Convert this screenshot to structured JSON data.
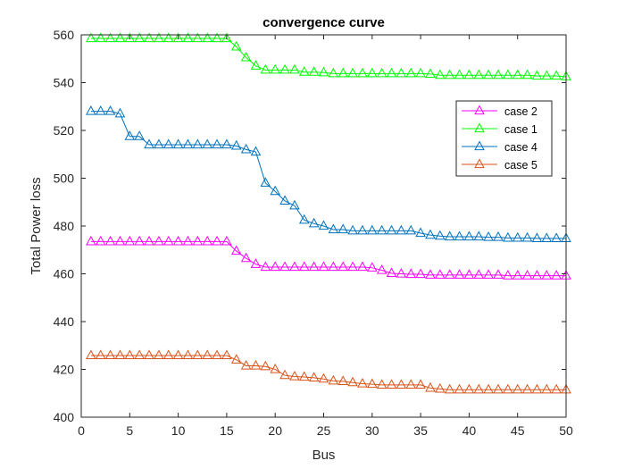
{
  "chart_data": {
    "type": "line",
    "title": "convergence curve",
    "xlabel": "Bus",
    "ylabel": "Total Power loss",
    "xlim": [
      0,
      50
    ],
    "ylim": [
      400,
      560
    ],
    "xticks": [
      0,
      5,
      10,
      15,
      20,
      25,
      30,
      35,
      40,
      45,
      50
    ],
    "yticks": [
      400,
      420,
      440,
      460,
      480,
      500,
      520,
      540,
      560
    ],
    "grid": false,
    "marker": "triangle-up-open",
    "legend_position": "top-right",
    "x": [
      1,
      2,
      3,
      4,
      5,
      6,
      7,
      8,
      9,
      10,
      11,
      12,
      13,
      14,
      15,
      16,
      17,
      18,
      19,
      20,
      21,
      22,
      23,
      24,
      25,
      26,
      27,
      28,
      29,
      30,
      31,
      32,
      33,
      34,
      35,
      36,
      37,
      38,
      39,
      40,
      41,
      42,
      43,
      44,
      45,
      46,
      47,
      48,
      49,
      50
    ],
    "series": [
      {
        "name": "case 2",
        "color": "#ff00ff",
        "values": [
          473.5,
          473.5,
          473.5,
          473.5,
          473.5,
          473.5,
          473.5,
          473.5,
          473.5,
          473.5,
          473.5,
          473.5,
          473.5,
          473.5,
          473.5,
          469.5,
          466.5,
          464.0,
          462.8,
          462.8,
          462.8,
          462.8,
          462.8,
          462.8,
          462.8,
          462.8,
          462.8,
          462.8,
          462.8,
          462.5,
          461.5,
          460.2,
          460.0,
          459.8,
          459.8,
          459.5,
          459.5,
          459.5,
          459.5,
          459.5,
          459.5,
          459.5,
          459.5,
          459.2,
          459.2,
          459.2,
          459.2,
          459.2,
          459.2,
          459.2
        ]
      },
      {
        "name": "case 1",
        "color": "#00ff00",
        "values": [
          558.5,
          558.5,
          558.5,
          558.5,
          558.5,
          558.5,
          558.5,
          558.5,
          558.5,
          558.5,
          558.5,
          558.5,
          558.5,
          558.5,
          558.5,
          555.0,
          550.5,
          547.0,
          545.3,
          545.3,
          545.3,
          545.3,
          544.4,
          544.4,
          544.2,
          543.8,
          543.8,
          543.8,
          543.8,
          543.8,
          543.8,
          543.8,
          543.8,
          543.8,
          543.8,
          543.6,
          543.1,
          543.1,
          543.1,
          543.1,
          543.1,
          543.1,
          543.1,
          543.1,
          543.1,
          543.1,
          542.8,
          542.8,
          542.8,
          542.5
        ]
      },
      {
        "name": "case 4",
        "color": "#0072bd",
        "values": [
          528.0,
          528.0,
          528.0,
          527.0,
          517.5,
          517.5,
          514.0,
          514.0,
          514.0,
          514.0,
          514.0,
          514.0,
          514.0,
          514.0,
          514.0,
          513.5,
          512.0,
          511.0,
          498.0,
          494.5,
          490.5,
          488.5,
          482.5,
          481.0,
          480.0,
          478.5,
          478.5,
          478.0,
          478.0,
          478.0,
          478.0,
          478.0,
          478.0,
          478.0,
          477.0,
          476.2,
          475.8,
          475.5,
          475.5,
          475.5,
          475.5,
          475.3,
          475.3,
          475.0,
          475.0,
          475.0,
          474.8,
          474.8,
          474.8,
          474.8
        ]
      },
      {
        "name": "case 5",
        "color": "#d95319",
        "values": [
          425.8,
          425.8,
          425.8,
          425.8,
          425.8,
          425.8,
          425.8,
          425.8,
          425.8,
          425.8,
          425.8,
          425.8,
          425.8,
          425.8,
          425.8,
          424.0,
          421.5,
          421.5,
          421.2,
          420.0,
          417.5,
          417.0,
          416.8,
          416.5,
          416.0,
          415.2,
          415.0,
          414.5,
          414.0,
          413.8,
          413.5,
          413.5,
          413.5,
          413.5,
          413.5,
          412.2,
          411.8,
          411.5,
          411.5,
          411.5,
          411.5,
          411.5,
          411.5,
          411.5,
          411.5,
          411.5,
          411.5,
          411.5,
          411.5,
          411.5
        ]
      }
    ],
    "legend_order": [
      "case 2",
      "case 1",
      "case 4",
      "case 5"
    ]
  }
}
